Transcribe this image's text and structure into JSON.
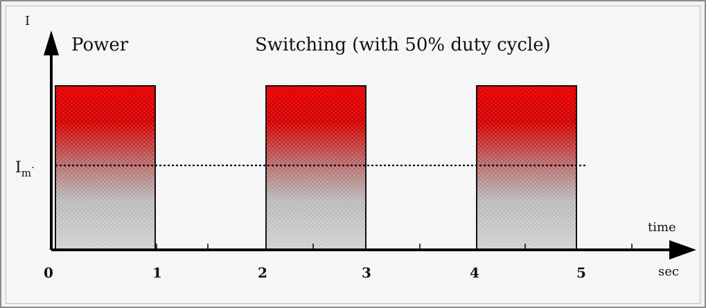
{
  "labels": {
    "y_axis": "I",
    "power": "Power",
    "title": "Switching (with 50% duty cycle)",
    "mean_level": "I",
    "mean_level_subscript": "m",
    "x_axis": "time",
    "unit": "sec"
  },
  "ticks": [
    "0",
    "1",
    "2",
    "3",
    "4",
    "5"
  ],
  "pulses": [
    {
      "start": 0,
      "end": 1
    },
    {
      "start": 2,
      "end": 3
    },
    {
      "start": 4,
      "end": 5
    }
  ],
  "duty_cycle_percent": 50,
  "colors": {
    "pulse_top": "#e00000",
    "pulse_bottom": "#d8d8d8",
    "axis": "#000000",
    "frame": "#8a8a8a"
  }
}
